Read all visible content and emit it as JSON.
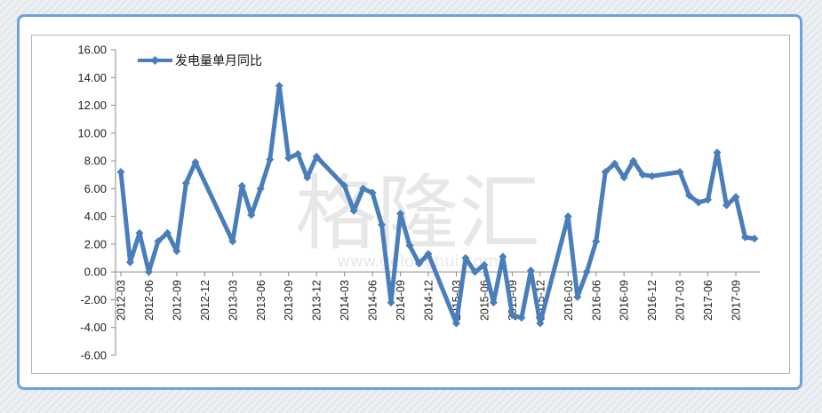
{
  "chart_data": {
    "type": "line",
    "title": "",
    "xlabel": "",
    "ylabel": "",
    "ylim": [
      -6,
      16
    ],
    "y_ticks": [
      "16.00",
      "14.00",
      "12.00",
      "10.00",
      "8.00",
      "6.00",
      "4.00",
      "2.00",
      "0.00",
      "-2.00",
      "-4.00",
      "-6.00"
    ],
    "x_tick_labels": [
      "2012-03",
      "2012-06",
      "2012-09",
      "2012-12",
      "2013-03",
      "2013-06",
      "2013-09",
      "2013-12",
      "2014-03",
      "2014-06",
      "2014-09",
      "2014-12",
      "2015-03",
      "2015-06",
      "2015-09",
      "2015-12",
      "2016-03",
      "2016-06",
      "2016-09",
      "2016-12",
      "2017-03",
      "2017-06",
      "2017-09"
    ],
    "legend_position": "top-left",
    "grid": false,
    "watermark": "格隆汇",
    "watermark_url": "www.gelonghui.com",
    "series": [
      {
        "name": "发电量单月同比",
        "color": "#4a7ebb",
        "marker": "diamond",
        "x": [
          "2012-03",
          "2012-04",
          "2012-05",
          "2012-06",
          "2012-07",
          "2012-08",
          "2012-09",
          "2012-10",
          "2012-11",
          "2012-12",
          "2013-01",
          "2013-02",
          "2013-03",
          "2013-04",
          "2013-05",
          "2013-06",
          "2013-07",
          "2013-08",
          "2013-09",
          "2013-10",
          "2013-11",
          "2013-12",
          "2014-01",
          "2014-02",
          "2014-03",
          "2014-04",
          "2014-05",
          "2014-06",
          "2014-07",
          "2014-08",
          "2014-09",
          "2014-10",
          "2014-11",
          "2014-12",
          "2015-01",
          "2015-02",
          "2015-03",
          "2015-04",
          "2015-05",
          "2015-06",
          "2015-07",
          "2015-08",
          "2015-09",
          "2015-10",
          "2015-11",
          "2015-12",
          "2016-01",
          "2016-02",
          "2016-03",
          "2016-04",
          "2016-05",
          "2016-06",
          "2016-07",
          "2016-08",
          "2016-09",
          "2016-10",
          "2016-11",
          "2016-12",
          "2017-01",
          "2017-02",
          "2017-03",
          "2017-04",
          "2017-05",
          "2017-06",
          "2017-07",
          "2017-08",
          "2017-09",
          "2017-10",
          "2017-11"
        ],
        "values": [
          7.2,
          0.7,
          2.8,
          0.0,
          2.2,
          2.8,
          1.5,
          6.4,
          7.9,
          null,
          null,
          null,
          2.2,
          6.2,
          4.1,
          6.0,
          8.1,
          13.4,
          8.2,
          8.5,
          6.8,
          8.3,
          null,
          null,
          6.2,
          4.4,
          6.0,
          5.7,
          3.4,
          -2.2,
          4.2,
          1.9,
          0.6,
          1.3,
          null,
          null,
          -3.7,
          1.0,
          0.0,
          0.5,
          -2.2,
          1.1,
          -3.1,
          -3.3,
          0.1,
          -3.7,
          null,
          null,
          4.0,
          -1.8,
          0.0,
          2.2,
          7.2,
          7.8,
          6.8,
          8.0,
          7.0,
          6.9,
          null,
          null,
          7.2,
          5.5,
          5.0,
          5.2,
          8.6,
          4.8,
          5.4,
          2.5,
          2.4
        ]
      }
    ]
  }
}
